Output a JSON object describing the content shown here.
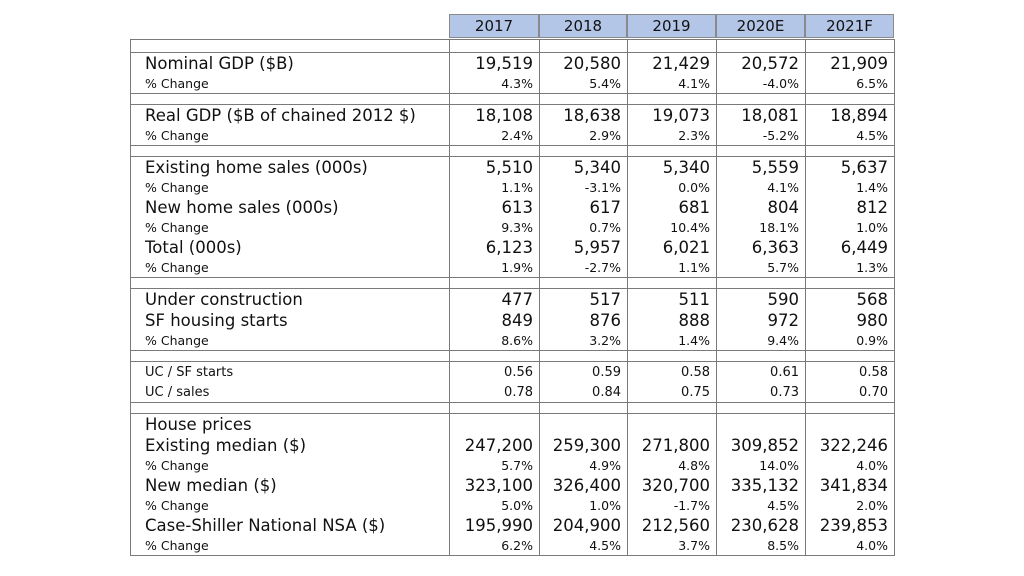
{
  "columns": [
    "2017",
    "2018",
    "2019",
    "2020E",
    "2021F"
  ],
  "sections": [
    {
      "rows": [
        {
          "label": "Nominal GDP ($B)",
          "size": "big",
          "values": [
            "19,519",
            "20,580",
            "21,429",
            "20,572",
            "21,909"
          ]
        },
        {
          "label": "% Change",
          "size": "small",
          "values": [
            "4.3%",
            "5.4%",
            "4.1%",
            "-4.0%",
            "6.5%"
          ]
        }
      ]
    },
    {
      "rows": [
        {
          "label": "Real GDP ($B of chained 2012 $)",
          "size": "big",
          "values": [
            "18,108",
            "18,638",
            "19,073",
            "18,081",
            "18,894"
          ]
        },
        {
          "label": "% Change",
          "size": "small",
          "values": [
            "2.4%",
            "2.9%",
            "2.3%",
            "-5.2%",
            "4.5%"
          ]
        }
      ]
    },
    {
      "rows": [
        {
          "label": "Existing home sales (000s)",
          "size": "big",
          "values": [
            "5,510",
            "5,340",
            "5,340",
            "5,559",
            "5,637"
          ]
        },
        {
          "label": "% Change",
          "size": "small",
          "values": [
            "1.1%",
            "-3.1%",
            "0.0%",
            "4.1%",
            "1.4%"
          ]
        },
        {
          "label": "New home sales (000s)",
          "size": "big",
          "values": [
            "613",
            "617",
            "681",
            "804",
            "812"
          ]
        },
        {
          "label": "% Change",
          "size": "small",
          "values": [
            "9.3%",
            "0.7%",
            "10.4%",
            "18.1%",
            "1.0%"
          ]
        },
        {
          "label": "Total (000s)",
          "size": "big",
          "values": [
            "6,123",
            "5,957",
            "6,021",
            "6,363",
            "6,449"
          ]
        },
        {
          "label": "% Change",
          "size": "small",
          "values": [
            "1.9%",
            "-2.7%",
            "1.1%",
            "5.7%",
            "1.3%"
          ]
        }
      ]
    },
    {
      "rows": [
        {
          "label": "Under construction",
          "size": "big",
          "values": [
            "477",
            "517",
            "511",
            "590",
            "568"
          ]
        },
        {
          "label": "SF housing starts",
          "size": "big",
          "values": [
            "849",
            "876",
            "888",
            "972",
            "980"
          ]
        },
        {
          "label": "% Change",
          "size": "small",
          "values": [
            "8.6%",
            "3.2%",
            "1.4%",
            "9.4%",
            "0.9%"
          ]
        }
      ]
    },
    {
      "rows": [
        {
          "label": "UC / SF starts",
          "size": "small",
          "values": [
            "0.56",
            "0.59",
            "0.58",
            "0.61",
            "0.58"
          ]
        },
        {
          "label": "UC / sales",
          "size": "small",
          "values": [
            "0.78",
            "0.84",
            "0.75",
            "0.73",
            "0.70"
          ]
        }
      ]
    },
    {
      "rows": [
        {
          "label": "House prices",
          "size": "big",
          "values": [
            "",
            "",
            "",
            "",
            ""
          ]
        },
        {
          "label": "Existing median ($)",
          "size": "big",
          "values": [
            "247,200",
            "259,300",
            "271,800",
            "309,852",
            "322,246"
          ]
        },
        {
          "label": "% Change",
          "size": "small",
          "values": [
            "5.7%",
            "4.9%",
            "4.8%",
            "14.0%",
            "4.0%"
          ]
        },
        {
          "label": "New median ($)",
          "size": "big",
          "values": [
            "323,100",
            "326,400",
            "320,700",
            "335,132",
            "341,834"
          ]
        },
        {
          "label": "% Change",
          "size": "small",
          "values": [
            "5.0%",
            "1.0%",
            "-1.7%",
            "4.5%",
            "2.0%"
          ]
        },
        {
          "label": "Case-Shiller National NSA ($)",
          "size": "big",
          "values": [
            "195,990",
            "204,900",
            "212,560",
            "230,628",
            "239,853"
          ]
        },
        {
          "label": "% Change",
          "size": "small",
          "values": [
            "6.2%",
            "4.5%",
            "3.7%",
            "8.5%",
            "4.0%"
          ]
        }
      ]
    }
  ]
}
